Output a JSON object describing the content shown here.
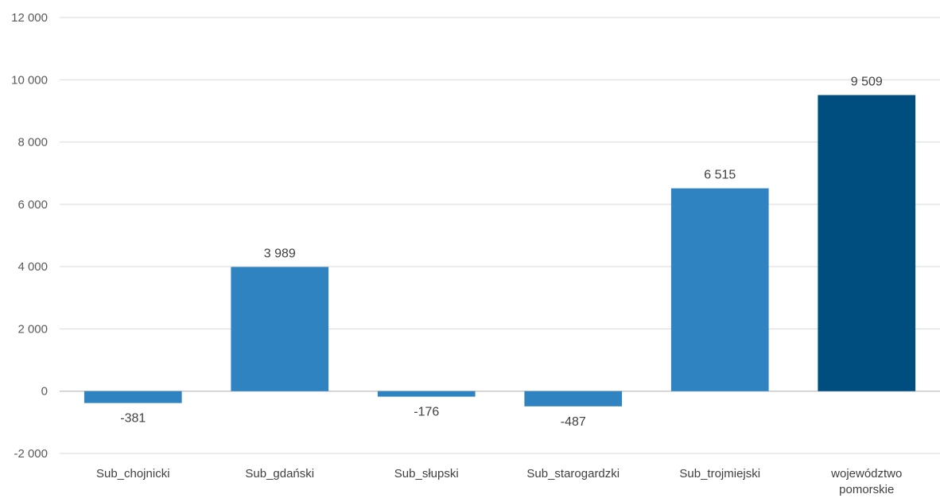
{
  "chart_data": {
    "type": "bar",
    "categories": [
      [
        "Sub_chojnicki"
      ],
      [
        "Sub_gdański"
      ],
      [
        "Sub_słupski"
      ],
      [
        "Sub_starogardzki"
      ],
      [
        "Sub_trojmiejski"
      ],
      [
        "województwo",
        "pomorskie"
      ]
    ],
    "values": [
      -381,
      3989,
      -176,
      -487,
      6515,
      9509
    ],
    "data_labels": [
      "-381",
      "3 989",
      "-176",
      "-487",
      "6 515",
      "9 509"
    ],
    "yticks": [
      -2000,
      0,
      2000,
      4000,
      6000,
      8000,
      10000,
      12000
    ],
    "ytick_labels": [
      "-2 000",
      "0",
      "2 000",
      "4 000",
      "6 000",
      "8 000",
      "10 000",
      "12 000"
    ],
    "ylim": [
      -2000,
      12000
    ],
    "grid": true,
    "colors": [
      "#2e83c0",
      "#2e83c0",
      "#2e83c0",
      "#2e83c0",
      "#2e83c0",
      "#004d80"
    ]
  }
}
